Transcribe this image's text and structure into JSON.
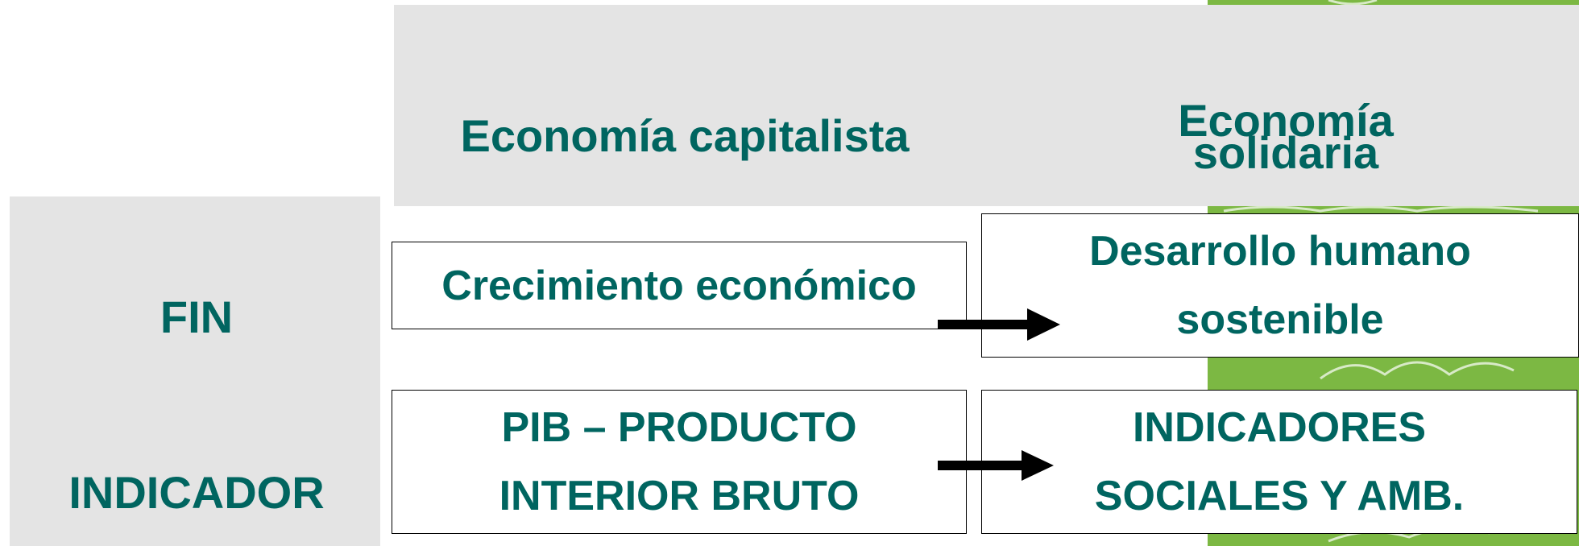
{
  "header": {
    "capitalista": "Economía capitalista",
    "solidaria": [
      "Economía",
      "solidaria"
    ]
  },
  "rows": [
    {
      "label": "FIN",
      "capitalista": [
        "Crecimiento económico"
      ],
      "solidaria": [
        "Desarrollo humano",
        "sostenible"
      ]
    },
    {
      "label": "INDICADOR",
      "capitalista": [
        "PIB – PRODUCTO",
        "INTERIOR BRUTO"
      ],
      "solidaria": [
        "INDICADORES",
        "SOCIALES Y AMB."
      ]
    }
  ]
}
